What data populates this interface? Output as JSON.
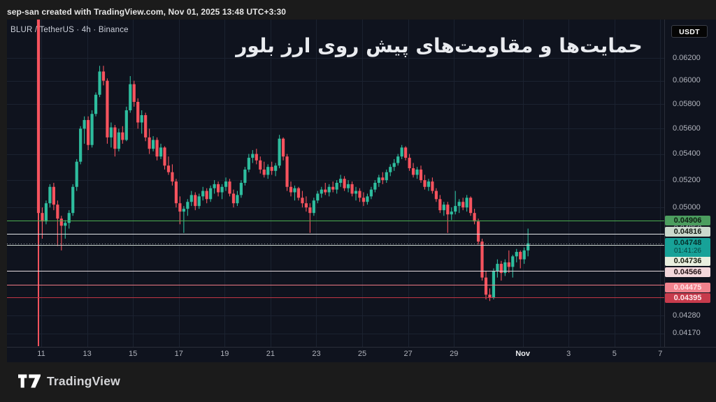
{
  "watermark": "sep-san created with TradingView.com, Nov 01, 2025 13:48 UTC+3:30",
  "legend": {
    "symbol": "BLUR / TetherUS",
    "interval": "4h",
    "exchange": "Binance",
    "text": "BLUR / TetherUS · 4h · Binance"
  },
  "title_overlay": "حمایت‌ها و مقاومت‌های پیش روی ارز بلور",
  "price_axis": {
    "currency_button": "USDT",
    "ticks": [
      {
        "label": "0.06200",
        "price": 0.062
      },
      {
        "label": "0.06000",
        "price": 0.06
      },
      {
        "label": "0.05800",
        "price": 0.058
      },
      {
        "label": "0.05600",
        "price": 0.056
      },
      {
        "label": "0.05400",
        "price": 0.054
      },
      {
        "label": "0.05200",
        "price": 0.052
      },
      {
        "label": "0.05000",
        "price": 0.05
      },
      {
        "label": "0.04280",
        "price": 0.0428
      },
      {
        "label": "0.04170",
        "price": 0.0417
      }
    ]
  },
  "time_axis": {
    "ticks": [
      {
        "label": "11",
        "day": 0
      },
      {
        "label": "13",
        "day": 2
      },
      {
        "label": "15",
        "day": 4
      },
      {
        "label": "17",
        "day": 6
      },
      {
        "label": "19",
        "day": 8
      },
      {
        "label": "21",
        "day": 10
      },
      {
        "label": "23",
        "day": 12
      },
      {
        "label": "25",
        "day": 14
      },
      {
        "label": "27",
        "day": 16
      },
      {
        "label": "29",
        "day": 18
      },
      {
        "label": "Nov",
        "day": 21,
        "major": true
      },
      {
        "label": "3",
        "day": 23
      },
      {
        "label": "5",
        "day": 25
      },
      {
        "label": "7",
        "day": 27
      }
    ]
  },
  "logo": {
    "text": "TradingView"
  },
  "colors": {
    "up": "#2ebd9e",
    "down": "#f6535e",
    "pane_bg": "#0f131e",
    "outer_bg": "#1b1b1b",
    "grid": "#1b2230",
    "axis_text": "#b2b5be"
  },
  "chart_data": {
    "type": "candlestick",
    "symbol": "BLUR / TetherUS",
    "interval": "4h",
    "exchange": "Binance",
    "price_scale": "log",
    "x_range": [
      "Oct 10 2025 20:00",
      "Nov 01 2025 12:00"
    ],
    "y_visible_range": [
      0.041,
      0.0655
    ],
    "current_price": {
      "price": 0.04748,
      "label": "0.04748",
      "countdown": "01:41:26",
      "line_color": "#999da6",
      "line_style": "dotted",
      "label_bg": "#17a298",
      "label_fg": "#05302c",
      "label_y": 354.5
    },
    "levels": [
      {
        "price": 0.04906,
        "label": "0.04906",
        "line_color": "#4caf50",
        "line_width": 1,
        "label_bg": "#4c9e5f",
        "label_fg": "#102014",
        "label_y": 316,
        "hidden_behind": false
      },
      {
        "price": 0.0485,
        "label": "0.04850",
        "line_color": null,
        "line_width": 0,
        "label_bg": "#12161f",
        "label_fg": "#aeb1ba",
        "label_y": 327,
        "hidden_behind": true
      },
      {
        "price": 0.04816,
        "label": "0.04816",
        "line_color": "#e3e6e8",
        "line_width": 1,
        "label_bg": "#cbd9cd",
        "label_fg": "#141c15",
        "label_y": 331.5,
        "hidden_behind": false
      },
      {
        "price": 0.04736,
        "label": "0.04736",
        "line_color": "#c9d3cb",
        "line_width": 1,
        "label_bg": "#e9efdf",
        "label_fg": "#1b2012",
        "label_y": 374,
        "hidden_behind": false
      },
      {
        "price": 0.04566,
        "label": "0.04566",
        "line_color": "#e5dcdf",
        "line_width": 1,
        "label_bg": "#f3d7db",
        "label_fg": "#221115",
        "label_y": 389.5,
        "hidden_behind": false
      },
      {
        "price": 0.04475,
        "label": "0.04475",
        "line_color": "#ee7a85",
        "line_width": 1.2,
        "label_bg": "#f1828d",
        "label_fg": "#ffdfe3",
        "label_y": 411.5,
        "hidden_behind": false
      },
      {
        "price": 0.04395,
        "label": "0.04395",
        "line_color": "#c13645",
        "line_width": 1.4,
        "label_bg": "#c73b4c",
        "label_fg": "#ffe9eb",
        "label_y": 426.5,
        "hidden_behind": false
      }
    ],
    "candles": [
      [
        0.066,
        0.0668,
        0.0408,
        0.0496
      ],
      [
        0.0496,
        0.05,
        0.0478,
        0.049
      ],
      [
        0.049,
        0.0505,
        0.0488,
        0.0503
      ],
      [
        0.0503,
        0.0517,
        0.05,
        0.0515
      ],
      [
        0.0515,
        0.0518,
        0.0498,
        0.0502
      ],
      [
        0.0502,
        0.0505,
        0.0473,
        0.0492
      ],
      [
        0.0492,
        0.0494,
        0.047,
        0.0487
      ],
      [
        0.0487,
        0.0491,
        0.0478,
        0.0489
      ],
      [
        0.0489,
        0.0498,
        0.0485,
        0.0496
      ],
      [
        0.0496,
        0.0517,
        0.0494,
        0.0515
      ],
      [
        0.0515,
        0.0536,
        0.0512,
        0.0534
      ],
      [
        0.0534,
        0.0562,
        0.0532,
        0.056
      ],
      [
        0.056,
        0.057,
        0.0548,
        0.0567
      ],
      [
        0.0567,
        0.057,
        0.0543,
        0.0547
      ],
      [
        0.0547,
        0.0575,
        0.0545,
        0.0572
      ],
      [
        0.0572,
        0.059,
        0.057,
        0.0588
      ],
      [
        0.0588,
        0.0613,
        0.0586,
        0.0608
      ],
      [
        0.0608,
        0.0613,
        0.0596,
        0.06
      ],
      [
        0.06,
        0.0602,
        0.0548,
        0.0553
      ],
      [
        0.0553,
        0.0565,
        0.0545,
        0.0561
      ],
      [
        0.0561,
        0.0563,
        0.0538,
        0.0544
      ],
      [
        0.0544,
        0.056,
        0.0542,
        0.0557
      ],
      [
        0.0557,
        0.0562,
        0.0548,
        0.0551
      ],
      [
        0.0551,
        0.0578,
        0.055,
        0.0575
      ],
      [
        0.0575,
        0.0604,
        0.0573,
        0.0597
      ],
      [
        0.0597,
        0.06,
        0.0578,
        0.0582
      ],
      [
        0.0582,
        0.0585,
        0.056,
        0.0565
      ],
      [
        0.0565,
        0.0575,
        0.0556,
        0.0571
      ],
      [
        0.0571,
        0.0573,
        0.055,
        0.0553
      ],
      [
        0.0553,
        0.056,
        0.054,
        0.0544
      ],
      [
        0.0544,
        0.0554,
        0.0542,
        0.0551
      ],
      [
        0.0551,
        0.0553,
        0.0535,
        0.0538
      ],
      [
        0.0538,
        0.0548,
        0.0536,
        0.0545
      ],
      [
        0.0545,
        0.0546,
        0.0528,
        0.0531
      ],
      [
        0.0531,
        0.0538,
        0.0524,
        0.0526
      ],
      [
        0.0526,
        0.0532,
        0.0516,
        0.0519
      ],
      [
        0.0519,
        0.0521,
        0.05,
        0.0503
      ],
      [
        0.0503,
        0.0508,
        0.0488,
        0.0497
      ],
      [
        0.0497,
        0.0501,
        0.0482,
        0.0499
      ],
      [
        0.0499,
        0.0506,
        0.0494,
        0.0504
      ],
      [
        0.0504,
        0.0512,
        0.0501,
        0.0509
      ],
      [
        0.0509,
        0.0511,
        0.0498,
        0.0501
      ],
      [
        0.0501,
        0.051,
        0.0499,
        0.0508
      ],
      [
        0.0508,
        0.0515,
        0.0505,
        0.0512
      ],
      [
        0.0512,
        0.0514,
        0.0503,
        0.0506
      ],
      [
        0.0506,
        0.0516,
        0.0504,
        0.0514
      ],
      [
        0.0514,
        0.052,
        0.051,
        0.0517
      ],
      [
        0.0517,
        0.0519,
        0.0508,
        0.0511
      ],
      [
        0.0511,
        0.0517,
        0.0506,
        0.0515
      ],
      [
        0.0515,
        0.0522,
        0.0512,
        0.0519
      ],
      [
        0.0519,
        0.0521,
        0.0508,
        0.051
      ],
      [
        0.051,
        0.0513,
        0.05,
        0.0503
      ],
      [
        0.0503,
        0.0512,
        0.0501,
        0.0509
      ],
      [
        0.0509,
        0.052,
        0.0507,
        0.0518
      ],
      [
        0.0518,
        0.053,
        0.0516,
        0.0528
      ],
      [
        0.0528,
        0.054,
        0.0526,
        0.0537
      ],
      [
        0.0537,
        0.0543,
        0.0533,
        0.054
      ],
      [
        0.054,
        0.0544,
        0.0532,
        0.0535
      ],
      [
        0.0535,
        0.0538,
        0.0525,
        0.0528
      ],
      [
        0.0528,
        0.0534,
        0.0522,
        0.0524
      ],
      [
        0.0524,
        0.0532,
        0.0521,
        0.053
      ],
      [
        0.053,
        0.0534,
        0.0524,
        0.0527
      ],
      [
        0.0527,
        0.0533,
        0.0523,
        0.0531
      ],
      [
        0.0531,
        0.0555,
        0.0529,
        0.0552
      ],
      [
        0.0552,
        0.0553,
        0.0535,
        0.0538
      ],
      [
        0.0538,
        0.054,
        0.0512,
        0.0515
      ],
      [
        0.0515,
        0.0519,
        0.0508,
        0.0511
      ],
      [
        0.0511,
        0.0516,
        0.0505,
        0.0514
      ],
      [
        0.0514,
        0.0515,
        0.0505,
        0.0507
      ],
      [
        0.0507,
        0.0512,
        0.05,
        0.0503
      ],
      [
        0.0503,
        0.0508,
        0.0497,
        0.05
      ],
      [
        0.05,
        0.0503,
        0.0482,
        0.0496
      ],
      [
        0.0496,
        0.0507,
        0.0494,
        0.0505
      ],
      [
        0.0505,
        0.0512,
        0.0503,
        0.051
      ],
      [
        0.051,
        0.0515,
        0.0507,
        0.0513
      ],
      [
        0.0513,
        0.0518,
        0.0509,
        0.0511
      ],
      [
        0.0511,
        0.0517,
        0.0508,
        0.0515
      ],
      [
        0.0515,
        0.0519,
        0.0511,
        0.0513
      ],
      [
        0.0513,
        0.052,
        0.051,
        0.0518
      ],
      [
        0.0518,
        0.0524,
        0.0515,
        0.0521
      ],
      [
        0.0521,
        0.0523,
        0.0512,
        0.0514
      ],
      [
        0.0514,
        0.052,
        0.0511,
        0.0517
      ],
      [
        0.0517,
        0.0519,
        0.0508,
        0.051
      ],
      [
        0.051,
        0.0515,
        0.0505,
        0.0512
      ],
      [
        0.0512,
        0.0514,
        0.0504,
        0.0507
      ],
      [
        0.0507,
        0.0511,
        0.0501,
        0.0504
      ],
      [
        0.0504,
        0.051,
        0.0502,
        0.0508
      ],
      [
        0.0508,
        0.0515,
        0.0506,
        0.0513
      ],
      [
        0.0513,
        0.052,
        0.0511,
        0.0518
      ],
      [
        0.0518,
        0.0524,
        0.0515,
        0.0522
      ],
      [
        0.0522,
        0.0526,
        0.0517,
        0.052
      ],
      [
        0.052,
        0.0528,
        0.0518,
        0.0526
      ],
      [
        0.0526,
        0.0532,
        0.0523,
        0.053
      ],
      [
        0.053,
        0.0536,
        0.0527,
        0.0533
      ],
      [
        0.0533,
        0.054,
        0.0531,
        0.0538
      ],
      [
        0.0538,
        0.0547,
        0.0536,
        0.0545
      ],
      [
        0.0545,
        0.0546,
        0.0535,
        0.0537
      ],
      [
        0.0537,
        0.054,
        0.0527,
        0.0529
      ],
      [
        0.0529,
        0.0533,
        0.0522,
        0.0524
      ],
      [
        0.0524,
        0.053,
        0.0521,
        0.0528
      ],
      [
        0.0528,
        0.0531,
        0.0518,
        0.052
      ],
      [
        0.052,
        0.0524,
        0.0513,
        0.0515
      ],
      [
        0.0515,
        0.0521,
        0.0512,
        0.0519
      ],
      [
        0.0519,
        0.0522,
        0.051,
        0.0512
      ],
      [
        0.0512,
        0.0514,
        0.0504,
        0.0506
      ],
      [
        0.0506,
        0.0509,
        0.0496,
        0.0498
      ],
      [
        0.0498,
        0.0504,
        0.0494,
        0.0502
      ],
      [
        0.0502,
        0.0504,
        0.0482,
        0.0495
      ],
      [
        0.0495,
        0.05,
        0.0491,
        0.0497
      ],
      [
        0.0497,
        0.0512,
        0.0495,
        0.0501
      ],
      [
        0.0501,
        0.0506,
        0.0496,
        0.0504
      ],
      [
        0.0504,
        0.0507,
        0.0498,
        0.05
      ],
      [
        0.05,
        0.0509,
        0.0497,
        0.0507
      ],
      [
        0.0507,
        0.0508,
        0.0494,
        0.0496
      ],
      [
        0.0496,
        0.0499,
        0.0488,
        0.049
      ],
      [
        0.049,
        0.0492,
        0.0474,
        0.0476
      ],
      [
        0.0476,
        0.0478,
        0.045,
        0.0452
      ],
      [
        0.0452,
        0.0456,
        0.0438,
        0.0441
      ],
      [
        0.0441,
        0.0445,
        0.0437,
        0.0439
      ],
      [
        0.0439,
        0.0458,
        0.0438,
        0.0456
      ],
      [
        0.0456,
        0.0464,
        0.0452,
        0.0461
      ],
      [
        0.0461,
        0.0463,
        0.045,
        0.0455
      ],
      [
        0.0455,
        0.0464,
        0.0453,
        0.0462
      ],
      [
        0.0462,
        0.047,
        0.0455,
        0.0459
      ],
      [
        0.0459,
        0.0467,
        0.0452,
        0.0466
      ],
      [
        0.0466,
        0.0471,
        0.0462,
        0.0469
      ],
      [
        0.0469,
        0.047,
        0.0458,
        0.0464
      ],
      [
        0.0464,
        0.0472,
        0.0461,
        0.047
      ],
      [
        0.047,
        0.0485,
        0.0466,
        0.04748
      ]
    ]
  }
}
